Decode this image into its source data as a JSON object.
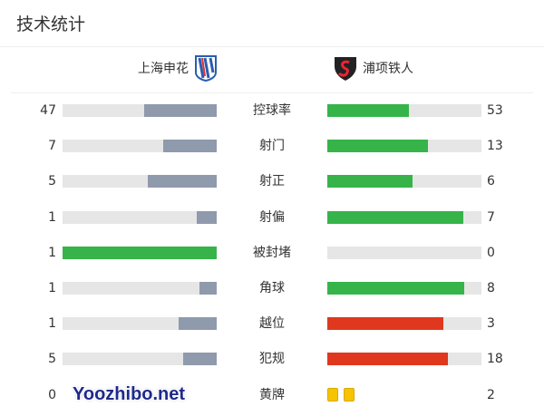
{
  "title": "技术统计",
  "home": {
    "name": "上海申花"
  },
  "away": {
    "name": "浦项铁人"
  },
  "colors": {
    "track": "#e6e6e6",
    "gray": "#8f9aad",
    "green": "#36b44a",
    "red": "#e0381e",
    "yellow": "#f6c400"
  },
  "stats": [
    {
      "label": "控球率",
      "home": "47",
      "away": "53",
      "home_frac": 0.47,
      "away_frac": 0.53,
      "home_color": "gray",
      "away_color": "green"
    },
    {
      "label": "射门",
      "home": "7",
      "away": "13",
      "home_frac": 0.35,
      "away_frac": 0.65,
      "home_color": "gray",
      "away_color": "green"
    },
    {
      "label": "射正",
      "home": "5",
      "away": "6",
      "home_frac": 0.45,
      "away_frac": 0.55,
      "home_color": "gray",
      "away_color": "green"
    },
    {
      "label": "射偏",
      "home": "1",
      "away": "7",
      "home_frac": 0.13,
      "away_frac": 0.88,
      "home_color": "gray",
      "away_color": "green"
    },
    {
      "label": "被封堵",
      "home": "1",
      "away": "0",
      "home_frac": 1,
      "away_frac": 0,
      "home_color": "green",
      "away_color": "gray"
    },
    {
      "label": "角球",
      "home": "1",
      "away": "8",
      "home_frac": 0.11,
      "away_frac": 0.89,
      "home_color": "gray",
      "away_color": "green"
    },
    {
      "label": "越位",
      "home": "1",
      "away": "3",
      "home_frac": 0.25,
      "away_frac": 0.75,
      "home_color": "gray",
      "away_color": "red"
    },
    {
      "label": "犯规",
      "home": "5",
      "away": "18",
      "home_frac": 0.22,
      "away_frac": 0.78,
      "home_color": "gray",
      "away_color": "red"
    }
  ],
  "yellow": {
    "label": "黄牌",
    "home": "0",
    "away": "2",
    "home_cards": 0,
    "away_cards": 2
  },
  "watermark": "Yoozhibo.net"
}
